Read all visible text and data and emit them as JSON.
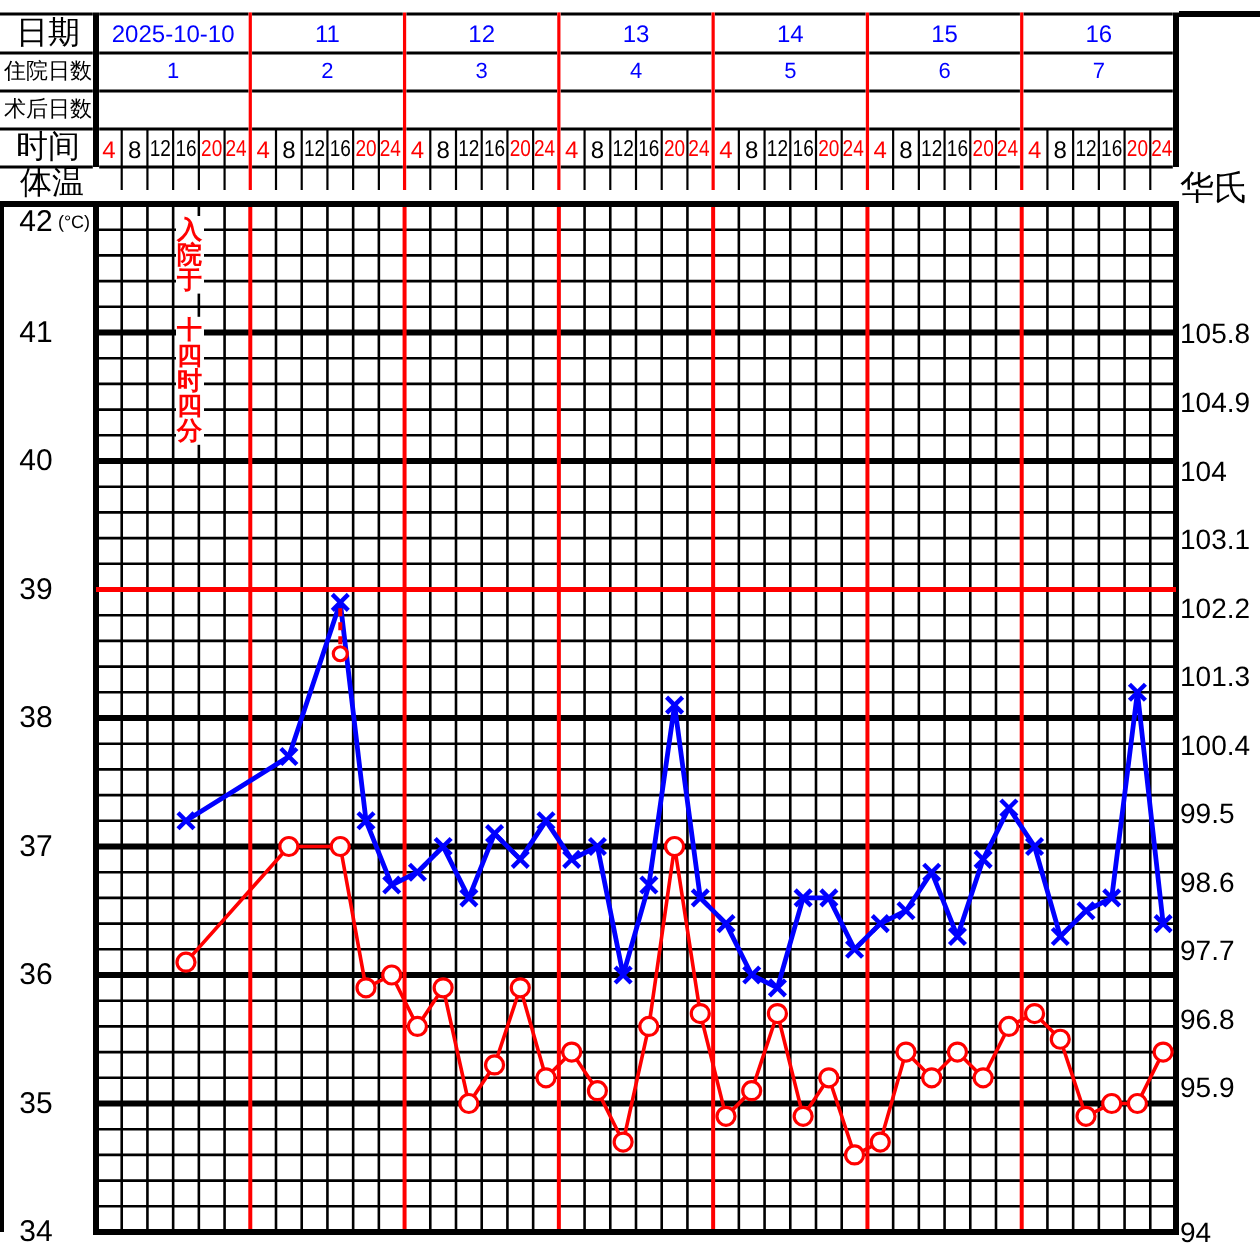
{
  "chart_data": {
    "type": "line",
    "xlabel": "时间",
    "ylabel": "体温",
    "y2label": "华氏",
    "categories": [
      "4",
      "8",
      "12",
      "16",
      "20",
      "24",
      "4",
      "8",
      "12",
      "16",
      "20",
      "24",
      "4",
      "8",
      "12",
      "16",
      "20",
      "24",
      "4",
      "8",
      "12",
      "16",
      "20",
      "24",
      "4",
      "8",
      "12",
      "16",
      "20",
      "24",
      "4",
      "8",
      "12",
      "16",
      "20",
      "24",
      "4",
      "8",
      "12",
      "16",
      "20",
      "24"
    ],
    "series": [
      {
        "color": "#0000ff",
        "marker": "cross",
        "values": [
          null,
          null,
          null,
          37.2,
          null,
          null,
          null,
          37.7,
          null,
          38.9,
          37.2,
          36.7,
          36.8,
          37.0,
          36.6,
          37.1,
          36.9,
          37.2,
          36.9,
          37.0,
          36.0,
          36.7,
          38.1,
          36.6,
          36.4,
          36.0,
          35.9,
          36.6,
          36.6,
          36.2,
          36.4,
          36.5,
          36.8,
          36.3,
          36.9,
          37.3,
          37.0,
          36.3,
          36.5,
          36.6,
          38.2,
          36.4
        ]
      },
      {
        "color": "#ff0000",
        "marker": "circle",
        "values": [
          null,
          null,
          null,
          36.1,
          null,
          null,
          null,
          37.0,
          null,
          37.0,
          35.9,
          36.0,
          35.6,
          35.9,
          35.0,
          35.3,
          35.9,
          35.2,
          35.4,
          35.1,
          34.7,
          35.6,
          37.0,
          35.7,
          34.9,
          35.1,
          35.7,
          34.9,
          35.2,
          34.6,
          34.7,
          35.4,
          35.2,
          35.4,
          35.2,
          35.6,
          35.7,
          35.5,
          34.9,
          35.0,
          35.0,
          35.4
        ]
      },
      {
        "type": "scatter",
        "color": "#ff0000",
        "marker": "circle",
        "line_style": "dashed",
        "values": [
          null,
          null,
          null,
          null,
          null,
          null,
          null,
          null,
          null,
          38.5,
          null,
          null,
          null,
          null,
          null,
          null,
          null,
          null,
          null,
          null,
          null,
          null,
          null,
          null,
          null,
          null,
          null,
          null,
          null,
          null,
          null,
          null,
          null,
          null,
          null,
          null,
          null,
          null,
          null,
          null,
          null,
          null
        ]
      }
    ],
    "ylim": [
      34,
      42
    ],
    "yticks": [
      34,
      35,
      36,
      37,
      38,
      39,
      40,
      41,
      42
    ],
    "y2lim": [
      94,
      107.5
    ],
    "y2ticks": [
      94,
      95.9,
      96.8,
      97.7,
      98.6,
      99.5,
      100.4,
      101.3,
      102.2,
      103.1,
      104,
      104.9,
      105.8
    ],
    "ref_lines": [
      {
        "axis": "y",
        "value": 39,
        "color": "#ff0000"
      }
    ],
    "grid": true,
    "annotations": [
      "日期",
      "住院日数",
      "术后日数",
      "(°C)",
      "2025-10-10",
      "11",
      "12",
      "13",
      "14",
      "15",
      "16",
      "1",
      "2",
      "3",
      "4",
      "5",
      "6",
      "7",
      "入院于",
      "十四时四分"
    ]
  }
}
